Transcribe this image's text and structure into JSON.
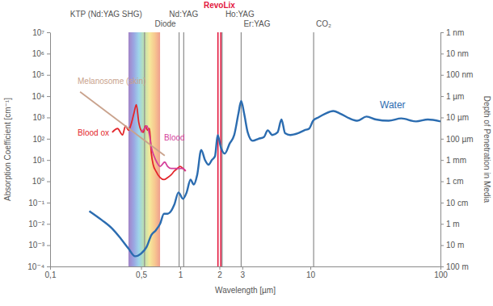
{
  "chart_data": {
    "type": "line",
    "log": true,
    "xlabel": "Wavelength [µm]",
    "ylabel": "Absorption Coefficient [cm⁻¹]",
    "y2label": "Depth of Penetration in Media",
    "xlim": [
      0.1,
      100
    ],
    "xticks": [
      {
        "value": 0.1,
        "label": "0,1"
      },
      {
        "value": 0.5,
        "label": "0,5"
      },
      1,
      2,
      3,
      10,
      100
    ],
    "ylim": [
      0.0001,
      10000000
    ],
    "yticks": [
      {
        "value": 10000000,
        "label": "10⁷"
      },
      {
        "value": 1000000,
        "label": "10⁶"
      },
      {
        "value": 100000,
        "label": "10⁵"
      },
      {
        "value": 10000,
        "label": "10⁴"
      },
      {
        "value": 1000,
        "label": "10³"
      },
      {
        "value": 100,
        "label": "10²"
      },
      {
        "value": 10,
        "label": "10¹"
      },
      {
        "value": 1,
        "label": "10⁰"
      },
      {
        "value": 0.1,
        "label": "10⁻¹"
      },
      {
        "value": 0.01,
        "label": "10⁻²"
      },
      {
        "value": 0.001,
        "label": "10⁻³"
      },
      {
        "value": 0.0001,
        "label": "10⁻⁴"
      }
    ],
    "y2lim": [
      10000,
      1e-07
    ],
    "y2ticks": [
      {
        "value": 1e-07,
        "label": "1 nm"
      },
      {
        "value": 1e-06,
        "label": "10 nm"
      },
      {
        "value": 1e-05,
        "label": "100 nm"
      },
      {
        "value": 0.0001,
        "label": "1 µm"
      },
      {
        "value": 0.001,
        "label": "10 µm"
      },
      {
        "value": 0.01,
        "label": "100 µm"
      },
      {
        "value": 0.1,
        "label": "1 mm"
      },
      {
        "value": 1,
        "label": "1 cm"
      },
      {
        "value": 10,
        "label": "10 cm"
      },
      {
        "value": 100,
        "label": "1 m"
      },
      {
        "value": 1000,
        "label": "10 m"
      },
      {
        "value": 10000,
        "label": "100 m"
      }
    ],
    "bands": [
      {
        "xlim": [
          0.4,
          0.7
        ],
        "colors": [
          "#7b4fb0",
          "#6f7fd6",
          "#74c4e0",
          "#9ed28a",
          "#f0e070",
          "#f4b060",
          "#e8765e"
        ]
      }
    ],
    "annotations": [
      {
        "label": "KTP (Nd:YAG SHG)",
        "x": 0.532,
        "color": "#8c8c8c"
      },
      {
        "label": "Nd:YAG",
        "x": 1.064,
        "color": "#8c8c8c"
      },
      {
        "label": "Diode",
        "x": 0.98,
        "color": "#8c8c8c"
      },
      {
        "label": "RevoLix",
        "x": 2.0,
        "color": "#e3173e",
        "line_style": "double"
      },
      {
        "label": "Ho:YAG",
        "x": 2.1,
        "color": "#8c8c8c"
      },
      {
        "label": "Er:YAG",
        "x": 2.94,
        "color": "#8c8c8c"
      },
      {
        "label": "CO₂",
        "x": 10.6,
        "color": "#8c8c8c"
      }
    ],
    "series": [
      {
        "name": "Water",
        "color": "#2b6cb0",
        "x": [
          0.2,
          0.25,
          0.3,
          0.35,
          0.4,
          0.45,
          0.5,
          0.55,
          0.6,
          0.65,
          0.7,
          0.75,
          0.8,
          0.85,
          0.9,
          0.97,
          1.05,
          1.12,
          1.2,
          1.27,
          1.35,
          1.45,
          1.55,
          1.65,
          1.75,
          1.85,
          1.94,
          2.05,
          2.2,
          2.4,
          2.6,
          2.8,
          2.94,
          3.1,
          3.3,
          3.6,
          4.0,
          4.4,
          4.7,
          5.1,
          5.6,
          6.0,
          6.4,
          7.0,
          8.0,
          9.0,
          9.8,
          10.5,
          11.5,
          13,
          15,
          17,
          20,
          23,
          27,
          32,
          40,
          50,
          65,
          80,
          100
        ],
        "values": [
          0.04,
          0.015,
          0.006,
          0.002,
          0.0007,
          0.0003,
          0.0004,
          0.0008,
          0.003,
          0.005,
          0.01,
          0.03,
          0.03,
          0.04,
          0.08,
          0.3,
          0.15,
          0.3,
          1.2,
          0.7,
          2,
          30,
          10,
          6,
          10,
          15,
          150,
          40,
          20,
          60,
          150,
          1500,
          6000,
          1500,
          200,
          80,
          100,
          120,
          250,
          150,
          200,
          800,
          180,
          150,
          180,
          250,
          300,
          700,
          1000,
          1500,
          2000,
          1500,
          900,
          700,
          1100,
          800,
          700,
          900,
          650,
          800,
          650
        ]
      },
      {
        "name": "Blood ox",
        "color": "#e3262b",
        "x": [
          0.3,
          0.33,
          0.36,
          0.38,
          0.4,
          0.42,
          0.44,
          0.46,
          0.48,
          0.5,
          0.52,
          0.54,
          0.56,
          0.58,
          0.6,
          0.62,
          0.65,
          0.7,
          0.75,
          0.8,
          0.85,
          0.9,
          0.95,
          1.0,
          1.05,
          1.1
        ],
        "values": [
          200,
          300,
          150,
          400,
          250,
          500,
          1500,
          4000,
          600,
          250,
          200,
          400,
          250,
          300,
          20,
          6,
          3,
          1.5,
          1.2,
          1.5,
          2,
          3,
          4,
          5,
          4,
          3
        ]
      },
      {
        "name": "Blood",
        "color": "#d43f9a",
        "x": [
          0.5,
          0.53,
          0.555,
          0.58,
          0.6,
          0.63,
          0.66,
          0.7,
          0.76,
          0.8,
          0.85,
          0.9,
          0.95,
          1.0,
          1.05,
          1.1
        ],
        "values": [
          200,
          300,
          400,
          150,
          40,
          15,
          8,
          5,
          8,
          5,
          4,
          4,
          4,
          4,
          4,
          3
        ]
      },
      {
        "name": "Melanosome (skin)",
        "color": "#c9a28c",
        "x": [
          0.17,
          0.76
        ],
        "values": [
          16000,
          16
        ]
      }
    ]
  }
}
